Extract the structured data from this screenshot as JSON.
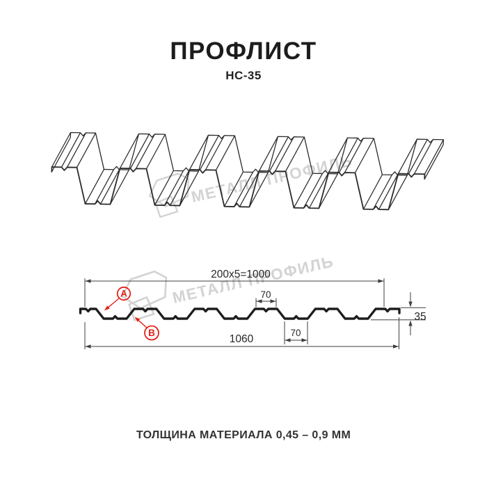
{
  "header": {
    "title": "ПРОФЛИСТ",
    "subtitle": "НС-35"
  },
  "watermark": {
    "text": "МЕТАЛЛ ПРОФИЛЬ"
  },
  "section": {
    "dimensions": {
      "top_width": "200x5=1000",
      "crest_width": "70",
      "trough_width": "70",
      "height": "35",
      "full_width": "1060"
    },
    "labels": {
      "a": "A",
      "b": "B"
    }
  },
  "footer": {
    "text": "ТОЛЩИНА МАТЕРИАЛА 0,45 – 0,9 ММ"
  },
  "profile_specs": {
    "model": "НС-35",
    "period_mm": 200,
    "periods": 5,
    "working_width_mm": 1000,
    "overall_width_mm": 1060,
    "height_mm": 35,
    "crest_top_mm": 70,
    "trough_bottom_mm": 70,
    "thickness_range_mm": "0,45 – 0,9"
  },
  "colors": {
    "accent": "#e2231a",
    "line": "#2a2a2a",
    "profile": "#1d1d1d",
    "dim": "#3f3f3f",
    "wm": "#d3d3d3"
  }
}
